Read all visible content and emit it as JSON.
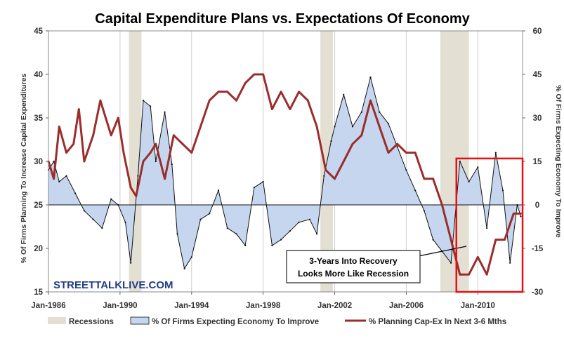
{
  "chart_data": {
    "type": "line",
    "title": "Capital Expenditure Plans vs. Expectations Of Economy",
    "ylabel_left": "% Of Firms Planning To Increase Capital Expenditures",
    "ylabel_right": "% Of Firms Expecting Economy To Improve",
    "ylim_left": [
      15,
      45
    ],
    "ylim_right": [
      -30,
      60
    ],
    "yticks_left": [
      "45",
      "40",
      "35",
      "30",
      "25",
      "20",
      "15"
    ],
    "yticks_right": [
      "60",
      "45",
      "30",
      "15",
      "0",
      "-15",
      "-30"
    ],
    "xlim": [
      1986.0,
      2012.5
    ],
    "xticks": [
      {
        "x": 1986,
        "label": "Jan-1986"
      },
      {
        "x": 1990,
        "label": "Jan-1990"
      },
      {
        "x": 1994,
        "label": "Jan-1994"
      },
      {
        "x": 1998,
        "label": "Jan-1998"
      },
      {
        "x": 2002,
        "label": "Jan-2002"
      },
      {
        "x": 2006,
        "label": "Jan-2006"
      },
      {
        "x": 2010,
        "label": "Jan-2010"
      }
    ],
    "recessions": [
      [
        1990.5,
        1991.2
      ],
      [
        2001.2,
        2001.9
      ],
      [
        2007.9,
        2009.5
      ]
    ],
    "highlight_box": {
      "x_range": [
        2008.8,
        2012.5
      ],
      "y_right_range": [
        -30,
        16
      ]
    },
    "series": [
      {
        "name": "% Of Firms Expecting Economy To Improve",
        "axis": "right",
        "style": "area",
        "points": [
          [
            1986.0,
            12
          ],
          [
            1986.3,
            15
          ],
          [
            1986.6,
            8
          ],
          [
            1987.0,
            10
          ],
          [
            1987.5,
            4
          ],
          [
            1988.0,
            -2
          ],
          [
            1988.5,
            -5
          ],
          [
            1989.0,
            -8
          ],
          [
            1989.5,
            2
          ],
          [
            1989.9,
            0
          ],
          [
            1990.3,
            -6
          ],
          [
            1990.6,
            -20
          ],
          [
            1991.0,
            10
          ],
          [
            1991.3,
            36
          ],
          [
            1991.7,
            34
          ],
          [
            1992.0,
            15
          ],
          [
            1992.5,
            32
          ],
          [
            1992.9,
            14
          ],
          [
            1993.2,
            -10
          ],
          [
            1993.6,
            -22
          ],
          [
            1994.0,
            -18
          ],
          [
            1994.5,
            -5
          ],
          [
            1995.0,
            -3
          ],
          [
            1995.5,
            5
          ],
          [
            1996.0,
            -8
          ],
          [
            1996.5,
            -10
          ],
          [
            1997.0,
            -14
          ],
          [
            1997.5,
            6
          ],
          [
            1998.0,
            8
          ],
          [
            1998.5,
            -14
          ],
          [
            1999.0,
            -12
          ],
          [
            1999.5,
            -9
          ],
          [
            2000.0,
            -6
          ],
          [
            2000.6,
            -5
          ],
          [
            2001.0,
            -10
          ],
          [
            2001.4,
            10
          ],
          [
            2001.8,
            22
          ],
          [
            2002.0,
            27
          ],
          [
            2002.5,
            38
          ],
          [
            2003.0,
            27
          ],
          [
            2003.5,
            32
          ],
          [
            2004.0,
            44
          ],
          [
            2004.5,
            32
          ],
          [
            2005.0,
            28
          ],
          [
            2005.5,
            20
          ],
          [
            2006.0,
            12
          ],
          [
            2006.5,
            5
          ],
          [
            2007.0,
            -2
          ],
          [
            2007.5,
            -12
          ],
          [
            2008.0,
            -16
          ],
          [
            2008.5,
            -20
          ],
          [
            2009.0,
            15
          ],
          [
            2009.5,
            8
          ],
          [
            2010.0,
            13
          ],
          [
            2010.5,
            -8
          ],
          [
            2011.0,
            18
          ],
          [
            2011.4,
            5
          ],
          [
            2011.8,
            -20
          ],
          [
            2012.2,
            0
          ],
          [
            2012.4,
            -4
          ]
        ]
      },
      {
        "name": "% Planning Cap-Ex In Next 3-6 Mths",
        "axis": "left",
        "style": "line",
        "points": [
          [
            1986.0,
            30
          ],
          [
            1986.3,
            28
          ],
          [
            1986.6,
            34
          ],
          [
            1987.0,
            31
          ],
          [
            1987.4,
            32
          ],
          [
            1987.7,
            36
          ],
          [
            1988.0,
            30
          ],
          [
            1988.5,
            33
          ],
          [
            1988.9,
            37
          ],
          [
            1989.2,
            35
          ],
          [
            1989.5,
            33
          ],
          [
            1989.9,
            35
          ],
          [
            1990.2,
            31
          ],
          [
            1990.6,
            27
          ],
          [
            1990.9,
            26
          ],
          [
            1991.3,
            30
          ],
          [
            1991.7,
            31
          ],
          [
            1992.0,
            32
          ],
          [
            1992.5,
            28
          ],
          [
            1993.0,
            33
          ],
          [
            1993.5,
            32
          ],
          [
            1994.0,
            31
          ],
          [
            1994.5,
            34
          ],
          [
            1995.0,
            37
          ],
          [
            1995.5,
            38
          ],
          [
            1996.0,
            38
          ],
          [
            1996.5,
            37
          ],
          [
            1997.0,
            39
          ],
          [
            1997.5,
            40
          ],
          [
            1998.0,
            40
          ],
          [
            1998.5,
            36
          ],
          [
            1999.0,
            38
          ],
          [
            1999.5,
            36
          ],
          [
            2000.0,
            38
          ],
          [
            2000.5,
            37
          ],
          [
            2001.0,
            34
          ],
          [
            2001.5,
            29
          ],
          [
            2002.0,
            28
          ],
          [
            2002.5,
            30
          ],
          [
            2003.0,
            32
          ],
          [
            2003.5,
            33
          ],
          [
            2004.0,
            37
          ],
          [
            2004.5,
            34
          ],
          [
            2005.0,
            31
          ],
          [
            2005.5,
            32
          ],
          [
            2006.0,
            31
          ],
          [
            2006.5,
            31
          ],
          [
            2007.0,
            28
          ],
          [
            2007.5,
            28
          ],
          [
            2008.0,
            25
          ],
          [
            2008.5,
            21
          ],
          [
            2009.0,
            17
          ],
          [
            2009.5,
            17
          ],
          [
            2010.0,
            19
          ],
          [
            2010.5,
            17
          ],
          [
            2011.0,
            21
          ],
          [
            2011.5,
            21
          ],
          [
            2012.0,
            24
          ],
          [
            2012.4,
            24
          ]
        ]
      }
    ],
    "legend": [
      "Recessions",
      "% Of Firms Expecting Economy To Improve",
      "% Planning Cap-Ex In Next 3-6 Mths"
    ],
    "annotation": [
      "3-Years Into Recovery",
      "Looks More Like Recession"
    ],
    "watermark": "STREETTALKLIVE.COM",
    "colors": {
      "area_fill": "#c5d6ee",
      "area_stroke": "#111111",
      "line": "#9b2d2d",
      "recession": "#e3dfd2",
      "highlight": "#e81010",
      "watermark": "#1f3d8a"
    }
  }
}
